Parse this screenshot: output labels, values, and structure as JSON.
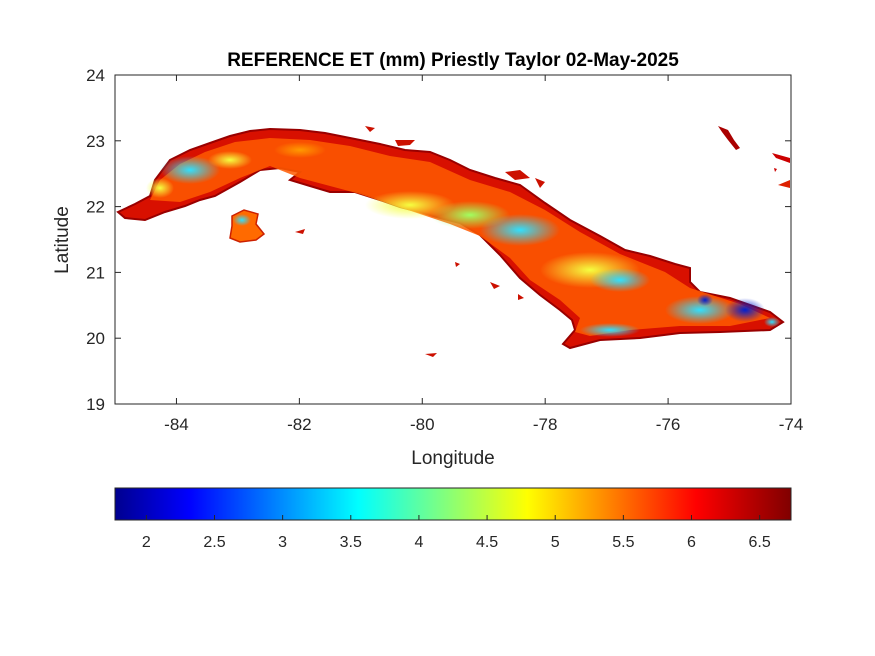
{
  "chart_data": {
    "type": "heatmap",
    "title": "REFERENCE ET (mm) Priestly Taylor 02-May-2025",
    "xlabel": "Longitude",
    "ylabel": "Latitude",
    "xlim": [
      -85,
      -74
    ],
    "ylim": [
      19,
      24
    ],
    "x_ticks": [
      "-84",
      "-82",
      "-80",
      "-78",
      "-76",
      "-74"
    ],
    "y_ticks": [
      "19",
      "20",
      "21",
      "22",
      "23",
      "24"
    ],
    "x_tick_values": [
      -84,
      -82,
      -80,
      -78,
      -76,
      -74
    ],
    "y_tick_values": [
      19,
      20,
      21,
      22,
      23,
      24
    ],
    "grid": false,
    "colormap": "jet",
    "colorbar": {
      "placement": "bottom",
      "range": [
        1.77,
        6.73
      ],
      "ticks": [
        "2",
        "2.5",
        "3",
        "3.5",
        "4",
        "4.5",
        "5",
        "5.5",
        "6",
        "6.5"
      ],
      "tick_values": [
        2,
        2.5,
        3,
        3.5,
        4,
        4.5,
        5,
        5.5,
        6,
        6.5
      ]
    },
    "region_values": [
      {
        "lon": -84.2,
        "lat": 22.6,
        "value": 4.5
      },
      {
        "lon": -83.5,
        "lat": 22.8,
        "value": 3.8
      },
      {
        "lon": -82.8,
        "lat": 22.95,
        "value": 5.0
      },
      {
        "lon": -81.8,
        "lat": 22.95,
        "value": 5.6
      },
      {
        "lon": -81.0,
        "lat": 22.6,
        "value": 6.2
      },
      {
        "lon": -80.0,
        "lat": 22.0,
        "value": 4.3
      },
      {
        "lon": -79.3,
        "lat": 21.9,
        "value": 4.0
      },
      {
        "lon": -78.3,
        "lat": 21.6,
        "value": 3.9
      },
      {
        "lon": -77.2,
        "lat": 21.0,
        "value": 4.4
      },
      {
        "lon": -76.6,
        "lat": 20.5,
        "value": 5.6
      },
      {
        "lon": -75.8,
        "lat": 20.45,
        "value": 4.0
      },
      {
        "lon": -74.9,
        "lat": 20.35,
        "value": 2.2
      },
      {
        "lon": -77.5,
        "lat": 20.05,
        "value": 5.2
      },
      {
        "lon": -82.85,
        "lat": 21.8,
        "value": 4.5
      }
    ]
  },
  "colors": {
    "land_edge": "#990000",
    "ocean": "#ffffff",
    "axis": "#262626"
  }
}
